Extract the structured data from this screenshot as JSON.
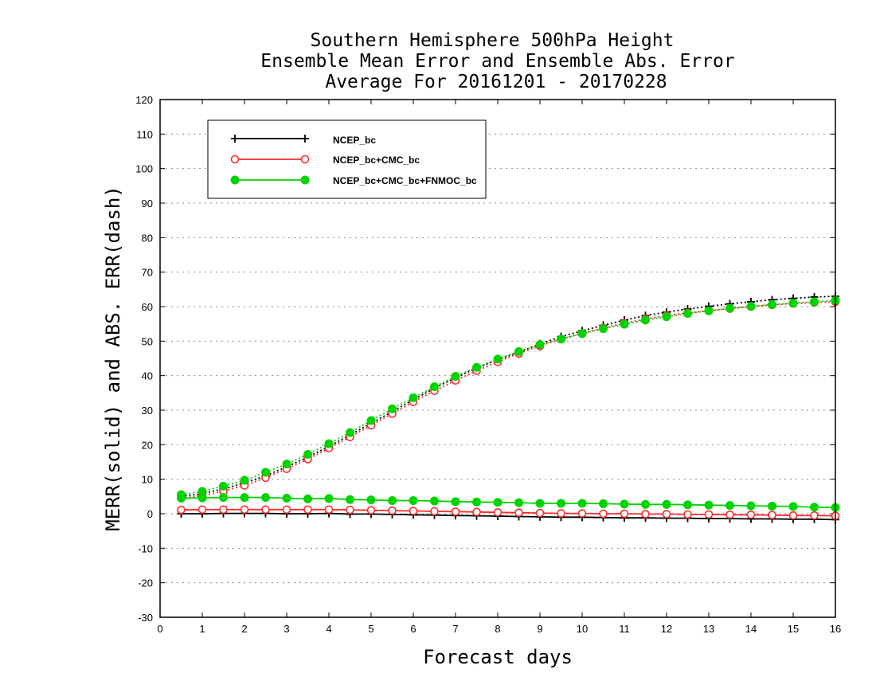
{
  "chart_data": {
    "type": "line",
    "title": [
      "Southern Hemisphere 500hPa Height",
      "Ensemble Mean Error and Ensemble Abs. Error",
      "Average For 20161201 - 20170228"
    ],
    "xlabel": "Forecast days",
    "ylabel": "MERR(solid) and ABS. ERR(dash)",
    "xlim": [
      0,
      16
    ],
    "ylim": [
      -30,
      120
    ],
    "x_ticks": [
      0,
      1,
      2,
      3,
      4,
      5,
      6,
      7,
      8,
      9,
      10,
      11,
      12,
      13,
      14,
      15,
      16
    ],
    "y_ticks": [
      -30,
      -20,
      -10,
      0,
      10,
      20,
      30,
      40,
      50,
      60,
      70,
      80,
      90,
      100,
      110,
      120
    ],
    "grid": "horizontal dotted",
    "legend_position": "top-left",
    "x": [
      0.5,
      1.0,
      1.5,
      2.0,
      2.5,
      3.0,
      3.5,
      4.0,
      4.5,
      5.0,
      5.5,
      6.0,
      6.5,
      7.0,
      7.5,
      8.0,
      8.5,
      9.0,
      9.5,
      10.0,
      10.5,
      11.0,
      11.5,
      12.0,
      12.5,
      13.0,
      13.5,
      14.0,
      14.5,
      15.0,
      15.5,
      16.0
    ],
    "series": [
      {
        "name": "NCEP_bc",
        "color": "#000000",
        "marker": "plus",
        "merr": [
          0.0,
          0.0,
          0.1,
          0.1,
          0.1,
          0.0,
          0.0,
          0.1,
          -0.1,
          -0.1,
          -0.2,
          -0.3,
          -0.4,
          -0.5,
          -0.6,
          -0.7,
          -0.8,
          -0.9,
          -1.0,
          -1.0,
          -1.1,
          -1.2,
          -1.2,
          -1.3,
          -1.3,
          -1.4,
          -1.4,
          -1.5,
          -1.5,
          -1.6,
          -1.6,
          -1.7
        ],
        "abs_err": [
          5.0,
          5.8,
          7.2,
          8.9,
          11.0,
          13.6,
          16.4,
          19.5,
          22.8,
          26.2,
          29.6,
          33.0,
          36.4,
          39.4,
          42.2,
          44.6,
          46.8,
          49.2,
          51.3,
          53.0,
          54.6,
          56.1,
          57.4,
          58.4,
          59.3,
          60.1,
          60.8,
          61.4,
          62.0,
          62.4,
          62.8,
          63.0
        ]
      },
      {
        "name": "NCEP_bc+CMC_bc",
        "color": "#ff2b2b",
        "marker": "open-circle",
        "merr": [
          1.1,
          1.2,
          1.2,
          1.2,
          1.2,
          1.2,
          1.2,
          1.2,
          1.1,
          1.0,
          0.9,
          0.8,
          0.7,
          0.6,
          0.5,
          0.4,
          0.3,
          0.2,
          0.1,
          0.1,
          0.0,
          0.0,
          -0.1,
          -0.1,
          -0.2,
          -0.2,
          -0.3,
          -0.3,
          -0.4,
          -0.5,
          -0.5,
          -0.6
        ],
        "abs_err": [
          4.5,
          5.2,
          6.5,
          8.2,
          10.4,
          13.0,
          15.8,
          19.0,
          22.2,
          25.6,
          29.0,
          32.4,
          35.6,
          38.6,
          41.4,
          44.0,
          46.4,
          48.6,
          50.6,
          52.2,
          53.8,
          55.2,
          56.4,
          57.4,
          58.2,
          58.8,
          59.4,
          60.0,
          60.5,
          60.9,
          61.2,
          61.4
        ]
      },
      {
        "name": "NCEP_bc+CMC_bc+FNMOC_bc",
        "color": "#00d400",
        "marker": "filled-circle",
        "merr": [
          4.5,
          4.6,
          4.7,
          4.7,
          4.7,
          4.5,
          4.3,
          4.4,
          4.1,
          4.0,
          3.8,
          3.8,
          3.7,
          3.5,
          3.4,
          3.3,
          3.2,
          3.0,
          3.0,
          3.0,
          2.9,
          2.8,
          2.7,
          2.7,
          2.6,
          2.5,
          2.4,
          2.3,
          2.2,
          2.1,
          1.9,
          1.8
        ],
        "abs_err": [
          5.5,
          6.5,
          8.0,
          9.7,
          12.0,
          14.4,
          17.2,
          20.3,
          23.5,
          27.0,
          30.4,
          33.6,
          36.8,
          39.8,
          42.4,
          44.8,
          47.0,
          49.0,
          50.6,
          52.2,
          53.6,
          54.9,
          56.1,
          57.1,
          58.0,
          58.8,
          59.5,
          60.1,
          60.6,
          61.0,
          61.4,
          61.8
        ]
      }
    ]
  }
}
